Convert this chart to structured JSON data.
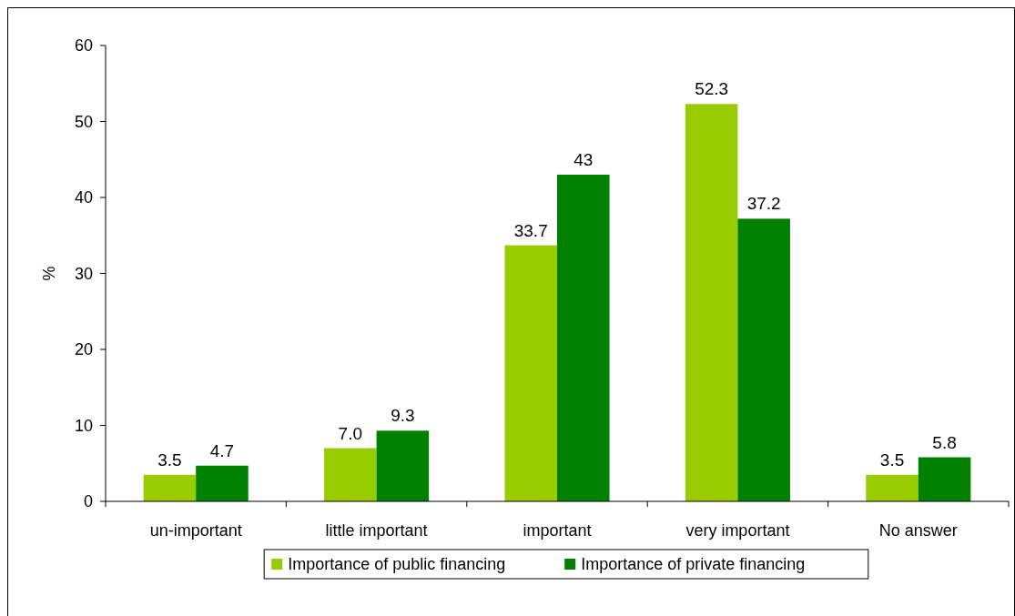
{
  "chart_data": {
    "type": "bar",
    "ylabel": "%",
    "categories": [
      "un-important",
      "little important",
      "important",
      "very important",
      "No answer"
    ],
    "series": [
      {
        "name": "Importance of public financing",
        "color": "#99cc00",
        "values": [
          3.5,
          7.0,
          33.7,
          52.3,
          3.5
        ],
        "value_labels": [
          "3.5",
          "7.0",
          "33.7",
          "52.3",
          "3.5"
        ]
      },
      {
        "name": "Importance of private financing",
        "color": "#008000",
        "values": [
          4.7,
          9.3,
          43,
          37.2,
          5.8
        ],
        "value_labels": [
          "4.7",
          "9.3",
          "43",
          "37.2",
          "5.8"
        ]
      }
    ],
    "ylim": [
      0,
      60
    ],
    "yticks": [
      0,
      10,
      20,
      30,
      40,
      50,
      60
    ],
    "grid": false,
    "legend": "bottom"
  }
}
